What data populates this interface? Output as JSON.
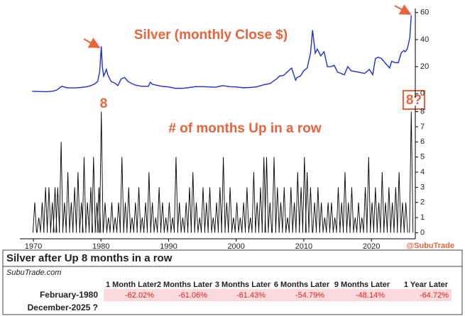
{
  "chart_data": [
    {
      "type": "line",
      "title": "Silver (monthly Close $)",
      "color": "#1f2fd0",
      "xlim": [
        1968,
        2026.5
      ],
      "ylim": [
        -3,
        63
      ],
      "yticks": [
        0,
        20,
        40,
        60
      ],
      "x": [
        1969.8,
        1971,
        1972,
        1973,
        1973.5,
        1974.2,
        1975,
        1976,
        1977,
        1978,
        1979,
        1979.5,
        1979.8,
        1980.05,
        1980.2,
        1980.4,
        1980.8,
        1981,
        1981.5,
        1982,
        1982.5,
        1983,
        1983.5,
        1984,
        1985,
        1986,
        1987,
        1987.3,
        1987.6,
        1988,
        1989,
        1990,
        1991,
        1992,
        1993,
        1994,
        1995,
        1996,
        1997,
        1998,
        1999,
        2000,
        2001,
        2002,
        2003,
        2004,
        2005,
        2006,
        2006.4,
        2007,
        2008.2,
        2008.8,
        2009,
        2009.5,
        2010,
        2010.5,
        2011,
        2011.3,
        2011.7,
        2012,
        2012.5,
        2013,
        2013.5,
        2014,
        2014.5,
        2015,
        2016,
        2016.5,
        2017,
        2018,
        2019,
        2019.7,
        2020.2,
        2020.6,
        2021,
        2021.5,
        2022,
        2022.7,
        2023,
        2023.5,
        2024,
        2024.4,
        2024.8,
        2025,
        2025.3,
        2025.5,
        2025.7,
        2025.9
      ],
      "values": [
        1.8,
        1.6,
        1.5,
        2.0,
        2.8,
        5.5,
        4.4,
        4.3,
        4.6,
        5.2,
        7,
        9,
        16,
        35,
        20,
        13,
        18,
        14,
        9,
        8,
        6,
        11,
        12,
        9,
        6.5,
        5.5,
        5.5,
        8.5,
        7,
        6.5,
        5.5,
        5,
        4,
        4,
        4.5,
        5.2,
        5.2,
        5,
        4.8,
        6,
        5.2,
        5,
        4.4,
        4.6,
        5,
        6.5,
        7.5,
        11,
        13,
        13.5,
        19,
        10,
        12,
        13,
        17,
        19,
        30,
        47,
        30,
        33,
        28,
        31,
        20,
        20,
        21,
        16,
        14,
        20,
        17,
        16,
        15,
        18,
        14,
        26,
        27,
        26,
        23,
        19,
        24,
        23,
        23,
        30,
        32,
        31,
        33,
        37,
        42,
        58
      ]
    },
    {
      "type": "spike",
      "title": "# of months Up in a row",
      "color": "#000000",
      "annotations": [
        "8",
        "8?"
      ],
      "source_label": "@SubuTrade",
      "xlim": [
        1968,
        2026.5
      ],
      "xticks": [
        1970,
        1980,
        1990,
        2000,
        2010,
        2020
      ],
      "ylim": [
        -0.4,
        8.4
      ],
      "yticks": [
        0,
        1,
        2,
        3,
        4,
        5,
        6,
        7,
        8
      ],
      "x": [
        1970.2,
        1970.8,
        1971.3,
        1971.8,
        1972.3,
        1972.8,
        1973.2,
        1973.6,
        1974.1,
        1974.6,
        1975.1,
        1975.6,
        1976.1,
        1976.6,
        1977.1,
        1977.5,
        1978,
        1978.5,
        1978.9,
        1979.4,
        1979.7,
        1980.05,
        1980.6,
        1981.1,
        1981.6,
        1982.1,
        1982.6,
        1983.1,
        1983.6,
        1984.1,
        1984.6,
        1985.1,
        1985.6,
        1986.1,
        1986.6,
        1987.1,
        1987.6,
        1988.1,
        1988.6,
        1989.1,
        1989.6,
        1990.1,
        1990.6,
        1991.1,
        1991.6,
        1992.1,
        1992.6,
        1993.1,
        1993.6,
        1994.1,
        1994.6,
        1995.1,
        1995.6,
        1996.1,
        1996.6,
        1997.1,
        1997.6,
        1998.1,
        1998.6,
        1999.1,
        1999.6,
        2000.1,
        2000.6,
        2001.1,
        2001.6,
        2002.1,
        2002.6,
        2003.1,
        2003.6,
        2004.1,
        2004.5,
        2005,
        2005.6,
        2006.1,
        2006.6,
        2007.1,
        2007.6,
        2008.1,
        2008.6,
        2009.1,
        2009.6,
        2010.1,
        2010.5,
        2011,
        2011.6,
        2012.1,
        2012.6,
        2013.1,
        2013.6,
        2014.1,
        2014.6,
        2015.1,
        2015.6,
        2016.1,
        2016.6,
        2017.1,
        2017.6,
        2018.1,
        2018.6,
        2019.1,
        2019.6,
        2020.1,
        2020.6,
        2021.1,
        2021.6,
        2022.1,
        2022.6,
        2023.1,
        2023.6,
        2024.1,
        2024.6,
        2025.1,
        2025.9
      ],
      "values": [
        2,
        1,
        2,
        3,
        3,
        2,
        3,
        3,
        6,
        2,
        4,
        2,
        3,
        4,
        2,
        5,
        2,
        3,
        5,
        2,
        3,
        8,
        2,
        1,
        2,
        1,
        2,
        5,
        2,
        3,
        1,
        2,
        3,
        1,
        2,
        4,
        2,
        1,
        3,
        2,
        1,
        2,
        1,
        5,
        2,
        1,
        2,
        3,
        4,
        2,
        1,
        3,
        2,
        3,
        1,
        2,
        3,
        5,
        2,
        3,
        1,
        2,
        1,
        2,
        3,
        1,
        4,
        2,
        3,
        5,
        5,
        2,
        5,
        3,
        2,
        3,
        1,
        3,
        2,
        4,
        3,
        5,
        4,
        3,
        2,
        3,
        2,
        1,
        2,
        2,
        1,
        3,
        2,
        4,
        2,
        3,
        1,
        2,
        1,
        3,
        5,
        2,
        3,
        2,
        4,
        2,
        3,
        2,
        3,
        4,
        2,
        2,
        8
      ]
    }
  ],
  "table": {
    "title": "Silver after Up 8 months in a row",
    "subtitle": "SubuTrade.com",
    "columns": [
      "1 Month Later",
      "2 Months Later",
      "3 Months Later",
      "6 Months Later",
      "9 Months Later",
      "1 Year Later"
    ],
    "rows": [
      [
        "February-1980",
        "-62.02%",
        "-61.06%",
        "-61.43%",
        "-54.79%",
        "-48.14%",
        "-64.72%"
      ],
      [
        "December-2025 ?"
      ]
    ]
  }
}
